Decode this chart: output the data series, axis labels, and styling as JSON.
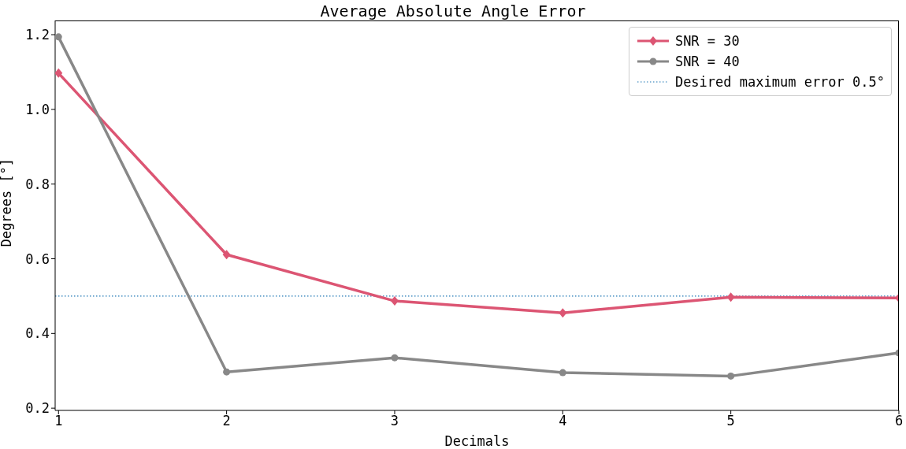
{
  "chart_data": {
    "type": "line",
    "title": "Average Absolute Angle Error",
    "xlabel": "Decimals",
    "ylabel": "Degrees [°]",
    "x": [
      1,
      2,
      3,
      4,
      5,
      6
    ],
    "series": [
      {
        "name": "SNR = 30",
        "color": "#dc5573",
        "marker": "diamond",
        "values": [
          1.097,
          0.611,
          0.487,
          0.455,
          0.497,
          0.495
        ]
      },
      {
        "name": "SNR = 40",
        "color": "#888888",
        "marker": "circle",
        "values": [
          1.194,
          0.297,
          0.335,
          0.295,
          0.286,
          0.348
        ]
      }
    ],
    "ref_lines": [
      {
        "axis": "y",
        "value": 0.5,
        "label": "Desired maximum error 0.5°",
        "color": "#1f77b4",
        "line_style": "dotted"
      }
    ],
    "xlim": [
      0.98,
      6
    ],
    "xticks": [
      1,
      2,
      3,
      4,
      5,
      6
    ],
    "ylim": [
      0.194,
      1.238
    ],
    "yticks": [
      0.2,
      0.4,
      0.6,
      0.8,
      {
        "value": 1,
        "label": "1.0"
      },
      1.2
    ],
    "grid": false,
    "legend": "top right",
    "line_style": "solid"
  }
}
